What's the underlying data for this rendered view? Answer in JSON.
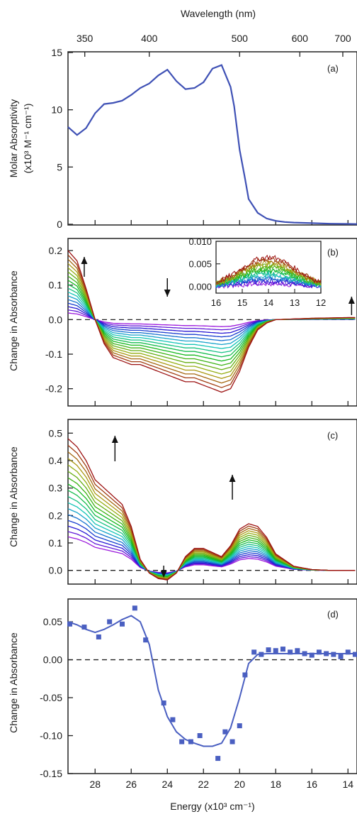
{
  "top_axis": {
    "label": "Wavelength (nm)",
    "ticks": [
      350,
      400,
      500,
      600,
      700
    ]
  },
  "chart_data": [
    {
      "type": "line",
      "panel_label": "(a)",
      "xlabel": "",
      "ylabel_line1": "Molar Absorptivity",
      "ylabel_line2": "(x10³ M⁻¹ cm⁻¹)",
      "xlim": [
        29.5,
        13.5
      ],
      "ylim": [
        0,
        15
      ],
      "yticks": [
        0,
        5,
        10,
        15
      ],
      "color": "#3f51b5",
      "x": [
        29.5,
        29.0,
        28.5,
        28.0,
        27.5,
        27.0,
        26.5,
        26.0,
        25.5,
        25.0,
        24.5,
        24.0,
        23.5,
        23.0,
        22.5,
        22.0,
        21.5,
        21.0,
        20.5,
        20.3,
        20.0,
        19.7,
        19.5,
        19.0,
        18.5,
        18.0,
        17.5,
        17.0,
        16.0,
        15.0,
        14.0,
        13.5
      ],
      "y": [
        8.5,
        7.8,
        8.4,
        9.7,
        10.5,
        10.6,
        10.8,
        11.3,
        11.9,
        12.3,
        13.0,
        13.5,
        12.5,
        11.8,
        11.9,
        12.4,
        13.6,
        13.9,
        12.0,
        10.3,
        6.5,
        4.0,
        2.2,
        1.0,
        0.5,
        0.3,
        0.2,
        0.15,
        0.1,
        0.05,
        0.03,
        0.02
      ]
    },
    {
      "type": "line",
      "panel_label": "(b)",
      "ylabel": "Change in Absorbance",
      "xlim": [
        29.5,
        13.5
      ],
      "ylim": [
        -0.25,
        0.235
      ],
      "yticks": [
        -0.2,
        -0.1,
        0.0,
        0.1,
        0.2
      ],
      "ytick_labels": [
        "-0.2",
        "-0.1",
        "0.0",
        "0.1",
        "0.2"
      ],
      "zero_line": true,
      "series_count": 17,
      "x": [
        29.5,
        29.0,
        28.5,
        28.0,
        27.5,
        27.0,
        26.5,
        26.0,
        25.5,
        25.0,
        24.5,
        24.0,
        23.5,
        23.0,
        22.5,
        22.0,
        21.5,
        21.0,
        20.5,
        20.0,
        19.5,
        19.0,
        18.5,
        18.0,
        17.0,
        16.0,
        15.0,
        14.0,
        13.5
      ],
      "max_curve": [
        0.2,
        0.17,
        0.09,
        0.0,
        -0.07,
        -0.11,
        -0.12,
        -0.13,
        -0.13,
        -0.14,
        -0.15,
        -0.16,
        -0.17,
        -0.18,
        -0.18,
        -0.19,
        -0.2,
        -0.21,
        -0.2,
        -0.15,
        -0.08,
        -0.03,
        -0.01,
        0.0,
        0.002,
        0.004,
        0.005,
        0.006,
        0.006
      ],
      "inset": {
        "xlim": [
          16,
          12
        ],
        "ylim": [
          -0.0015,
          0.01
        ],
        "xticks": [
          16,
          15,
          14,
          13,
          12
        ],
        "yticks": [
          0.0,
          0.005,
          0.01
        ],
        "ytick_labels": [
          "0.000",
          "0.005",
          "0.010"
        ],
        "peak_x": 14.0,
        "peak_y": 0.0065
      },
      "arrows": [
        {
          "x": 28.6,
          "direction": "up"
        },
        {
          "x": 24.0,
          "direction": "down"
        },
        {
          "x": 13.8,
          "direction": "up"
        }
      ]
    },
    {
      "type": "line",
      "panel_label": "(c)",
      "ylabel": "Change in Absorbance",
      "xlim": [
        29.5,
        13.5
      ],
      "ylim": [
        -0.05,
        0.55
      ],
      "yticks": [
        0.0,
        0.1,
        0.2,
        0.3,
        0.4,
        0.5
      ],
      "ytick_labels": [
        "0.0",
        "0.1",
        "0.2",
        "0.3",
        "0.4",
        "0.5"
      ],
      "zero_line": true,
      "series_count": 17,
      "x": [
        29.5,
        29.0,
        28.5,
        28.0,
        27.5,
        27.0,
        26.5,
        26.0,
        25.5,
        25.0,
        24.5,
        24.0,
        23.5,
        23.0,
        22.5,
        22.0,
        21.5,
        21.0,
        20.5,
        20.0,
        19.5,
        19.0,
        18.5,
        18.0,
        17.0,
        16.0,
        15.0,
        14.0,
        13.5
      ],
      "max_curve": [
        0.48,
        0.45,
        0.4,
        0.33,
        0.3,
        0.27,
        0.24,
        0.16,
        0.04,
        -0.01,
        -0.03,
        -0.035,
        -0.01,
        0.05,
        0.08,
        0.08,
        0.065,
        0.05,
        0.09,
        0.15,
        0.17,
        0.16,
        0.12,
        0.06,
        0.015,
        0.003,
        0.0,
        0.0,
        0.0
      ],
      "arrows": [
        {
          "x": 26.9,
          "direction": "up"
        },
        {
          "x": 24.2,
          "direction": "down"
        },
        {
          "x": 20.4,
          "direction": "up"
        }
      ]
    },
    {
      "type": "scatter",
      "panel_label": "(d)",
      "ylabel": "Change in Absorbance",
      "xlabel": "Energy (x10³ cm⁻¹)",
      "xlim": [
        29.5,
        13.5
      ],
      "xticks": [
        28,
        26,
        24,
        22,
        20,
        18,
        16,
        14
      ],
      "ylim": [
        -0.15,
        0.08
      ],
      "yticks": [
        -0.15,
        -0.1,
        -0.05,
        0.0,
        0.05
      ],
      "ytick_labels": [
        "-0.15",
        "-0.10",
        "-0.05",
        "0.00",
        "0.05"
      ],
      "zero_line": true,
      "color": "#4a5fc1",
      "points_x": [
        29.4,
        28.6,
        27.8,
        27.2,
        26.5,
        25.8,
        25.2,
        24.2,
        23.7,
        23.2,
        22.7,
        22.2,
        21.2,
        20.8,
        20.4,
        20.0,
        19.7,
        19.2,
        18.8,
        18.4,
        18.0,
        17.6,
        17.2,
        16.8,
        16.4,
        16.0,
        15.6,
        15.2,
        14.8,
        14.4,
        14.0,
        13.6
      ],
      "points_y": [
        0.047,
        0.043,
        0.03,
        0.05,
        0.047,
        0.068,
        0.026,
        -0.057,
        -0.079,
        -0.108,
        -0.108,
        -0.1,
        -0.13,
        -0.095,
        -0.108,
        -0.087,
        -0.02,
        0.01,
        0.007,
        0.013,
        0.012,
        0.014,
        0.01,
        0.012,
        0.008,
        0.006,
        0.01,
        0.008,
        0.007,
        0.004,
        0.01,
        0.007
      ],
      "fit_x": [
        29.5,
        29.0,
        28.5,
        28.0,
        27.5,
        27.0,
        26.5,
        26.0,
        25.5,
        25.0,
        24.5,
        24.0,
        23.5,
        23.0,
        22.5,
        22.0,
        21.5,
        21.0,
        20.5,
        20.0,
        19.5,
        19.0,
        18.5,
        18.0,
        17.0,
        16.0,
        15.0,
        14.0,
        13.5
      ],
      "fit_y": [
        0.05,
        0.046,
        0.04,
        0.036,
        0.04,
        0.046,
        0.053,
        0.058,
        0.05,
        0.02,
        -0.04,
        -0.075,
        -0.095,
        -0.105,
        -0.11,
        -0.114,
        -0.114,
        -0.11,
        -0.09,
        -0.05,
        -0.005,
        0.007,
        0.008,
        0.008,
        0.008,
        0.008,
        0.008,
        0.008,
        0.008
      ]
    }
  ]
}
